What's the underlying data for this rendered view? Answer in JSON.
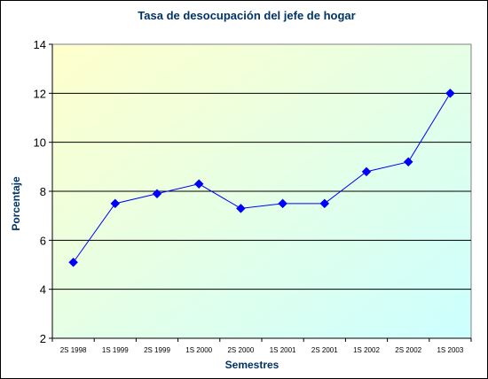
{
  "chart_data": {
    "type": "line",
    "title": "Tasa de desocupación del jefe de hogar",
    "xlabel": "Semestres",
    "ylabel": "Porcentaje",
    "categories": [
      "2S 1998",
      "1S 1999",
      "2S 1999",
      "1S 2000",
      "2S 2000",
      "1S 2001",
      "2S 2001",
      "1S 2002",
      "2S 2002",
      "1S 2003"
    ],
    "series": [
      {
        "values": [
          5.1,
          7.5,
          7.9,
          8.3,
          7.3,
          7.5,
          7.5,
          8.8,
          9.2,
          12.0
        ]
      }
    ],
    "ylim": [
      2,
      14
    ],
    "yticks": [
      2,
      4,
      6,
      8,
      10,
      12,
      14
    ],
    "grid": true,
    "legend": "none",
    "marker": "diamond"
  },
  "colors": {
    "title": "#003366",
    "axis_title": "#003366",
    "series": "#0000ff",
    "plot_gradient_start": "#ffffcc",
    "plot_gradient_end": "#ccffff",
    "gridline": "#000000"
  }
}
